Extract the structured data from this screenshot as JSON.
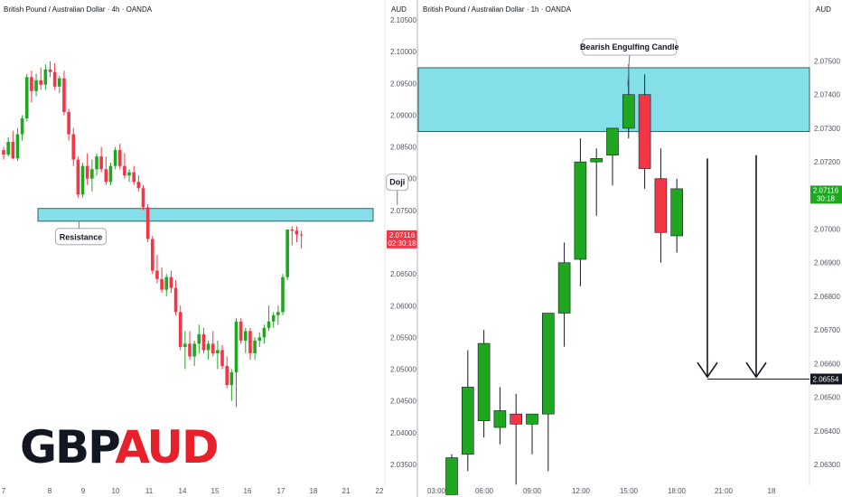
{
  "colors": {
    "bull": "#1fa81f",
    "bear": "#f23645",
    "zone": "#84dfe9",
    "zone_border": "#1a3a40",
    "grid": "#e0e3eb",
    "text": "#131722"
  },
  "chart_data": [
    {
      "type": "candlestick",
      "name": "left",
      "title": "British Pound / Australian Dollar · 4h · OANDA",
      "currency": "AUD",
      "x_ticks": [
        "7",
        "8",
        "9",
        "10",
        "11",
        "14",
        "15",
        "16",
        "17",
        "18",
        "21",
        "22"
      ],
      "y_ticks": [
        "2.10500",
        "2.10000",
        "2.09500",
        "2.09000",
        "2.08500",
        "2.08000",
        "2.07500",
        "2.07000",
        "2.06500",
        "2.06000",
        "2.05500",
        "2.05000",
        "2.04500",
        "2.04000",
        "2.03500"
      ],
      "ylim": [
        2.032,
        2.107
      ],
      "last_price": "2.07116",
      "countdown": "02:30:18",
      "watermark": {
        "main": "GBP",
        "accent": "AUD"
      },
      "zone": {
        "low": 2.0733,
        "high": 2.0753
      },
      "annotations": [
        {
          "text": "Resistance",
          "x": 17,
          "y": 2.0733,
          "anchor": "below"
        },
        {
          "text": "Doji",
          "x": 85,
          "y": 2.0753,
          "anchor": "above"
        }
      ],
      "candles": [
        [
          2.0845,
          2.085,
          2.083,
          2.0838
        ],
        [
          2.0838,
          2.0865,
          2.0835,
          2.0858
        ],
        [
          2.0858,
          2.0875,
          2.083,
          2.0832
        ],
        [
          2.0832,
          2.088,
          2.0828,
          2.087
        ],
        [
          2.087,
          2.09,
          2.086,
          2.0895
        ],
        [
          2.0895,
          2.0965,
          2.089,
          2.096
        ],
        [
          2.096,
          2.097,
          2.092,
          2.0938
        ],
        [
          2.0938,
          2.0965,
          2.093,
          2.0955
        ],
        [
          2.0955,
          2.0975,
          2.094,
          2.0948
        ],
        [
          2.0948,
          2.098,
          2.094,
          2.0972
        ],
        [
          2.0972,
          2.0985,
          2.096,
          2.0968
        ],
        [
          2.0968,
          2.0982,
          2.094,
          2.0945
        ],
        [
          2.0945,
          2.0962,
          2.0935,
          2.0958
        ],
        [
          2.0958,
          2.097,
          2.09,
          2.0905
        ],
        [
          2.0905,
          2.091,
          2.086,
          2.087
        ],
        [
          2.087,
          2.088,
          2.082,
          2.083
        ],
        [
          2.083,
          2.0835,
          2.077,
          2.0775
        ],
        [
          2.0775,
          2.0825,
          2.077,
          2.082
        ],
        [
          2.082,
          2.084,
          2.079,
          2.08
        ],
        [
          2.08,
          2.083,
          2.078,
          2.0815
        ],
        [
          2.0815,
          2.084,
          2.0805,
          2.0835
        ],
        [
          2.0835,
          2.085,
          2.081,
          2.0815
        ],
        [
          2.0815,
          2.0835,
          2.079,
          2.0795
        ],
        [
          2.0795,
          2.0825,
          2.079,
          2.082
        ],
        [
          2.082,
          2.085,
          2.0815,
          2.0845
        ],
        [
          2.0845,
          2.0855,
          2.0815,
          2.082
        ],
        [
          2.082,
          2.084,
          2.08,
          2.0805
        ],
        [
          2.0805,
          2.0815,
          2.0795,
          2.081
        ],
        [
          2.081,
          2.082,
          2.079,
          2.0795
        ],
        [
          2.0795,
          2.0805,
          2.078,
          2.0785
        ],
        [
          2.0785,
          2.079,
          2.075,
          2.0755
        ],
        [
          2.0755,
          2.076,
          2.07,
          2.0705
        ],
        [
          2.0705,
          2.071,
          2.065,
          2.0655
        ],
        [
          2.0655,
          2.068,
          2.0635,
          2.0642
        ],
        [
          2.0642,
          2.066,
          2.062,
          2.0625
        ],
        [
          2.0625,
          2.065,
          2.0615,
          2.0645
        ],
        [
          2.0645,
          2.0655,
          2.062,
          2.0628
        ],
        [
          2.0628,
          2.064,
          2.0585,
          2.059
        ],
        [
          2.059,
          2.06,
          2.053,
          2.0535
        ],
        [
          2.0535,
          2.056,
          2.05,
          2.054
        ],
        [
          2.054,
          2.056,
          2.0515,
          2.052
        ],
        [
          2.052,
          2.0545,
          2.0505,
          2.054
        ],
        [
          2.054,
          2.057,
          2.0525,
          2.0555
        ],
        [
          2.0555,
          2.0565,
          2.0525,
          2.053
        ],
        [
          2.053,
          2.0545,
          2.0515,
          2.054
        ],
        [
          2.054,
          2.056,
          2.052,
          2.0525
        ],
        [
          2.0525,
          2.0545,
          2.05,
          2.053
        ],
        [
          2.053,
          2.0538,
          2.05,
          2.0505
        ],
        [
          2.0505,
          2.052,
          2.047,
          2.0475
        ],
        [
          2.0475,
          2.05,
          2.045,
          2.0495
        ],
        [
          2.0495,
          2.058,
          2.044,
          2.0575
        ],
        [
          2.0575,
          2.058,
          2.054,
          2.0545
        ],
        [
          2.0545,
          2.0565,
          2.0525,
          2.056
        ],
        [
          2.056,
          2.0565,
          2.0515,
          2.0525
        ],
        [
          2.0525,
          2.055,
          2.0515,
          2.0545
        ],
        [
          2.0545,
          2.0558,
          2.0535,
          2.055
        ],
        [
          2.055,
          2.057,
          2.054,
          2.0565
        ],
        [
          2.0565,
          2.06,
          2.056,
          2.0575
        ],
        [
          2.0575,
          2.059,
          2.0565,
          2.0585
        ],
        [
          2.0585,
          2.06,
          2.057,
          2.059
        ],
        [
          2.059,
          2.065,
          2.0585,
          2.0645
        ],
        [
          2.0645,
          2.072,
          2.064,
          2.072
        ],
        [
          2.072,
          2.0725,
          2.0695,
          2.0718
        ],
        [
          2.0718,
          2.0725,
          2.07,
          2.0712
        ],
        [
          2.0712,
          2.0718,
          2.069,
          2.0711
        ]
      ]
    },
    {
      "type": "candlestick",
      "name": "right",
      "title": "British Pound / Australian Dollar · 1h · OANDA",
      "currency": "AUD",
      "x_ticks": [
        "03:00",
        "06:00",
        "09:00",
        "12:00",
        "15:00",
        "18:00",
        "21:00",
        "18"
      ],
      "y_ticks": [
        "2.07500",
        "2.07400",
        "2.07300",
        "2.07200",
        "2.07100",
        "2.07000",
        "2.06900",
        "2.06800",
        "2.06700",
        "2.06600",
        "2.06500",
        "2.06400",
        "2.06300"
      ],
      "ylim": [
        2.0623,
        2.0766
      ],
      "last_price": "2.07116",
      "countdown": "30:18",
      "target_price": "2.06554",
      "zone": {
        "low": 2.0729,
        "high": 2.0748
      },
      "annotations": [
        {
          "text": "Bearish Engulfing Candle",
          "x": 11,
          "y": 2.0748,
          "anchor": "above"
        }
      ],
      "arrows": [
        {
          "x": 17,
          "from": 2.0721,
          "to": 2.0656
        },
        {
          "x": 20,
          "from": 2.0722,
          "to": 2.0656
        }
      ],
      "candles": [
        [
          2.0621,
          2.0633,
          2.0621,
          2.0632
        ],
        [
          2.0633,
          2.0664,
          2.0628,
          2.0653
        ],
        [
          2.0643,
          2.067,
          2.0638,
          2.0666
        ],
        [
          2.0641,
          2.0653,
          2.0636,
          2.0646
        ],
        [
          2.0645,
          2.0651,
          2.0624,
          2.0642
        ],
        [
          2.0642,
          2.0644,
          2.0633,
          2.0645
        ],
        [
          2.0645,
          2.0675,
          2.0628,
          2.0675
        ],
        [
          2.0675,
          2.0696,
          2.0665,
          2.069
        ],
        [
          2.0691,
          2.0727,
          2.0683,
          2.072
        ],
        [
          2.072,
          2.0724,
          2.0704,
          2.0721
        ],
        [
          2.0722,
          2.073,
          2.0713,
          2.073
        ],
        [
          2.073,
          2.0749,
          2.0727,
          2.074
        ],
        [
          2.074,
          2.0746,
          2.0712,
          2.0718
        ],
        [
          2.0715,
          2.0724,
          2.069,
          2.0699
        ],
        [
          2.0698,
          2.0715,
          2.0693,
          2.0712
        ]
      ]
    }
  ]
}
